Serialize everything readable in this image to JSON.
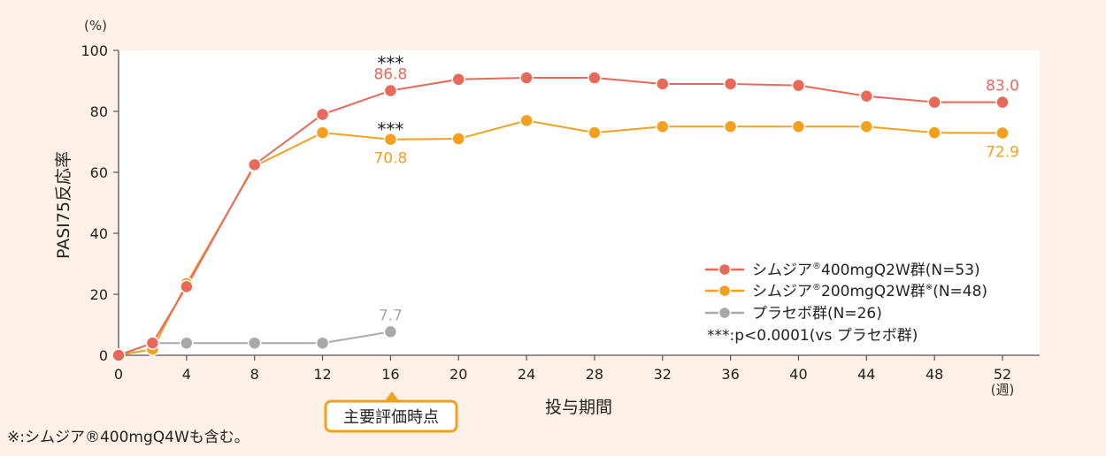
{
  "chart_data": {
    "type": "line",
    "ylabel": "PASI75反応率",
    "y_unit": "(%)",
    "xlabel": "投与期間",
    "x_unit": "(週)",
    "ylim": [
      0,
      100
    ],
    "xlim": [
      0,
      52
    ],
    "y_ticks": [
      0,
      20,
      40,
      60,
      80,
      100
    ],
    "x_ticks": [
      0,
      4,
      8,
      12,
      16,
      20,
      24,
      28,
      32,
      36,
      40,
      44,
      48,
      52
    ],
    "series": [
      {
        "name": "シムジア®400mgQ2W群(N=53)",
        "legend_prefix": "シムジア",
        "legend_mark": "®",
        "legend_suffix": "400mgQ2W群(N=53)",
        "color": "#e8685a",
        "x": [
          0,
          2,
          4,
          8,
          12,
          16,
          20,
          24,
          28,
          32,
          36,
          40,
          44,
          48,
          52
        ],
        "values": [
          0,
          4,
          22.5,
          62.5,
          79,
          86.8,
          90.5,
          91,
          91,
          89,
          89,
          88.5,
          85,
          83,
          83.0
        ]
      },
      {
        "name": "シムジア®200mgQ2W群※(N=48)",
        "legend_prefix": "シムジア",
        "legend_mark": "®",
        "legend_suffix": "200mgQ2W群",
        "legend_note": "※",
        "legend_tail": "(N=48)",
        "color": "#f2a01e",
        "x": [
          0,
          2,
          4,
          8,
          12,
          16,
          20,
          24,
          28,
          32,
          36,
          40,
          44,
          48,
          52
        ],
        "values": [
          0,
          2,
          23.5,
          62,
          73,
          70.8,
          71,
          77,
          73,
          75,
          75,
          75,
          75,
          73,
          72.9
        ]
      },
      {
        "name": "プラセボ群(N=26)",
        "legend_prefix": "プラセボ群(N=26)",
        "color": "#a9a9a9",
        "x": [
          0,
          2,
          4,
          8,
          12,
          16
        ],
        "values": [
          0,
          4,
          4,
          4,
          4,
          7.7
        ]
      }
    ],
    "data_labels": [
      {
        "text": "86.8",
        "x": 16,
        "y": 86.8,
        "series": 0,
        "pos": "above"
      },
      {
        "text": "70.8",
        "x": 16,
        "y": 70.8,
        "series": 1,
        "pos": "below"
      },
      {
        "text": "83.0",
        "x": 52,
        "y": 83.0,
        "series": 0,
        "pos": "above"
      },
      {
        "text": "72.9",
        "x": 52,
        "y": 72.9,
        "series": 1,
        "pos": "below"
      },
      {
        "text": "7.7",
        "x": 16,
        "y": 7.7,
        "series": 2,
        "pos": "above"
      }
    ],
    "significance": [
      {
        "text": "***",
        "x": 16,
        "series": 0
      },
      {
        "text": "***",
        "x": 16,
        "series": 1
      }
    ],
    "significance_note": "***:p<0.0001(vs プラセボ群)",
    "primary_endpoint_label": "主要評価時点",
    "primary_endpoint_week": 16,
    "footnote": "※:シムジア®400mgQ4Wも含む。"
  }
}
